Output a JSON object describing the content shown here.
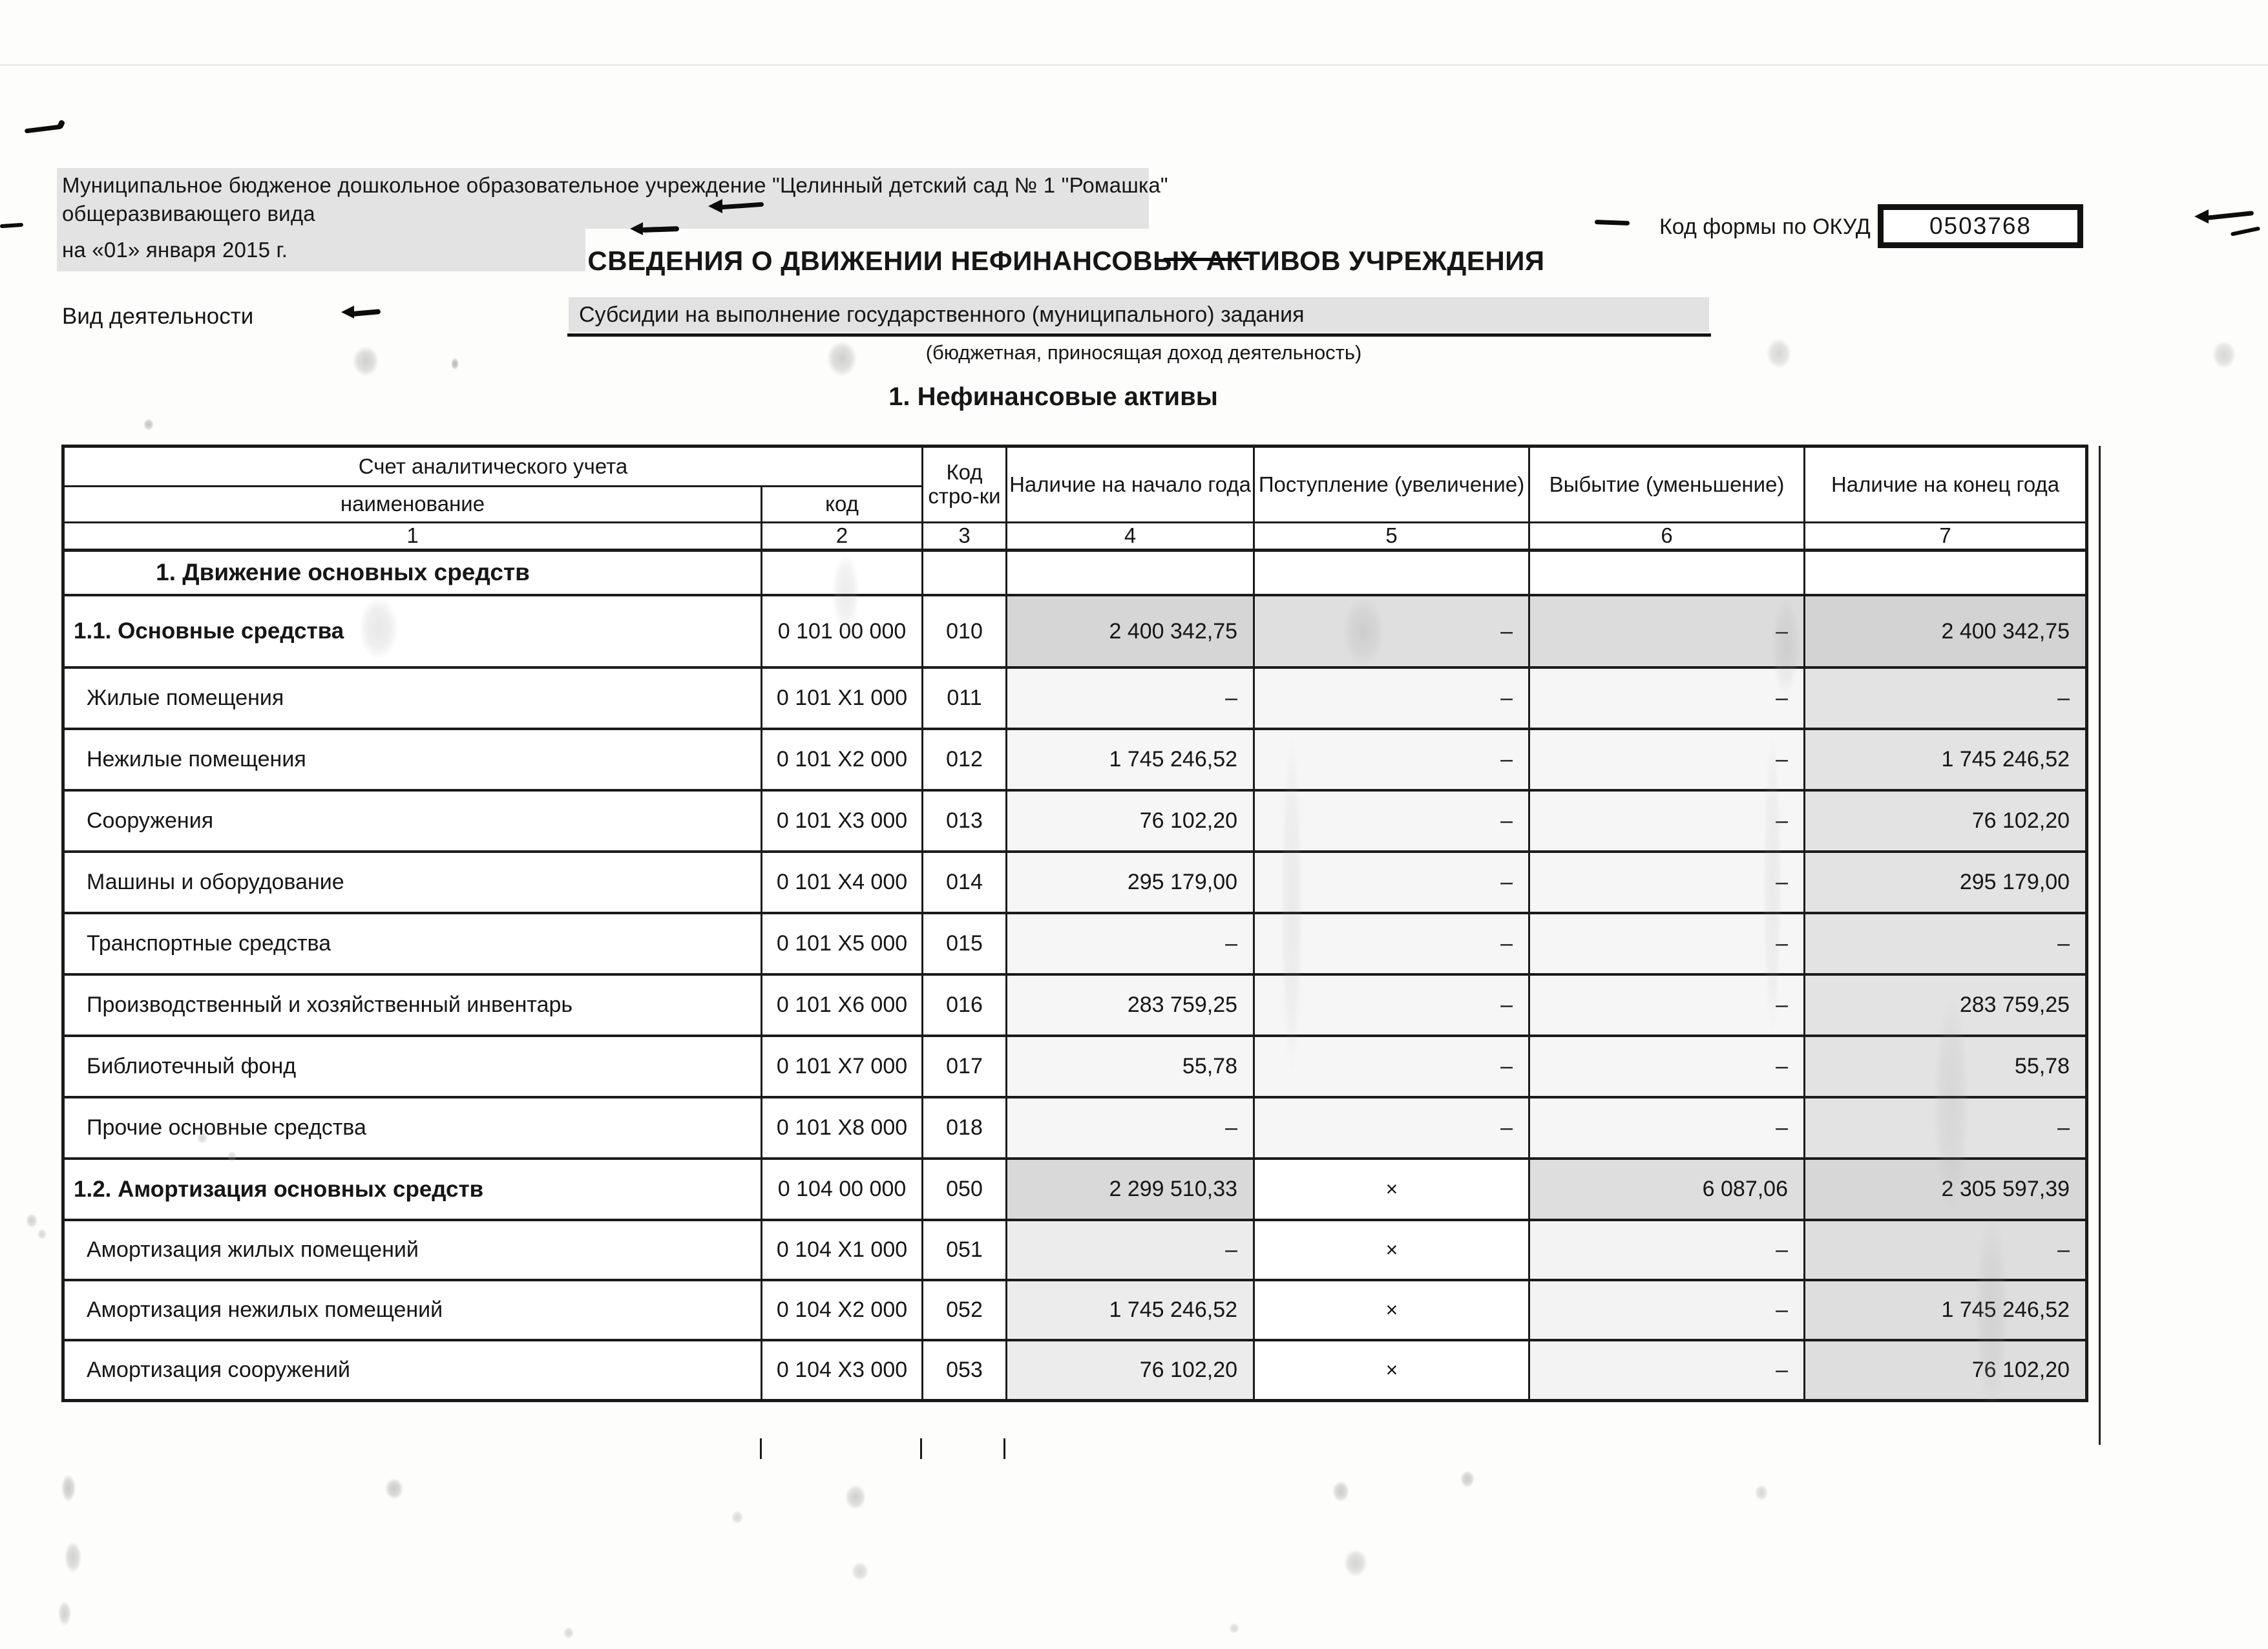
{
  "header": {
    "org_line1": "Муниципальное бюдженое дошкольное образовательное учреждение \"Целинный детский сад № 1 \"Ромашка\"",
    "org_line2": "общеразвивающего вида",
    "date_line": "на «01» января 2015 г.",
    "okud_label": "Код формы по ОКУД",
    "okud_value": "0503768",
    "title": "СВЕДЕНИЯ О ДВИЖЕНИИ НЕФИНАНСОВЫХ АКТИВОВ УЧРЕЖДЕНИЯ"
  },
  "activity": {
    "label": "Вид деятельности",
    "value": "Субсидии на выполнение государственного (муниципального) задания",
    "caption": "(бюджетная, приносящая доход деятельность)"
  },
  "section_title": "1. Нефинансовые активы",
  "table": {
    "headers": {
      "account": "Счет аналитического учета",
      "name": "наименование",
      "code": "код",
      "line_code": "Код стро-ки",
      "begin": "Наличие на начало года",
      "increase": "Поступление (увеличение)",
      "decrease": "Выбытие (уменьшение)",
      "end": "Наличие на конец года"
    },
    "column_numbers": [
      "1",
      "2",
      "3",
      "4",
      "5",
      "6",
      "7"
    ],
    "rows": [
      {
        "name": "1. Движение основных средств",
        "code": "",
        "line": "",
        "c4": "",
        "c5": "",
        "c6": "",
        "c7": "",
        "emphasis": "section"
      },
      {
        "name": "1.1. Основные средства",
        "code": "0 101 00 000",
        "line": "010",
        "c4": "2 400 342,75",
        "c5": "–",
        "c6": "–",
        "c7": "2 400 342,75",
        "emphasis": "bold"
      },
      {
        "name": "Жилые помещения",
        "code": "0 101 Х1 000",
        "line": "011",
        "c4": "–",
        "c5": "–",
        "c6": "–",
        "c7": "–",
        "emphasis": "normal"
      },
      {
        "name": "Нежилые помещения",
        "code": "0 101 Х2 000",
        "line": "012",
        "c4": "1 745 246,52",
        "c5": "–",
        "c6": "–",
        "c7": "1 745 246,52",
        "emphasis": "normal"
      },
      {
        "name": "Сооружения",
        "code": "0 101 Х3 000",
        "line": "013",
        "c4": "76 102,20",
        "c5": "–",
        "c6": "–",
        "c7": "76 102,20",
        "emphasis": "normal"
      },
      {
        "name": "Машины и оборудование",
        "code": "0 101 Х4 000",
        "line": "014",
        "c4": "295 179,00",
        "c5": "–",
        "c6": "–",
        "c7": "295 179,00",
        "emphasis": "normal"
      },
      {
        "name": "Транспортные средства",
        "code": "0 101 Х5 000",
        "line": "015",
        "c4": "–",
        "c5": "–",
        "c6": "–",
        "c7": "–",
        "emphasis": "normal"
      },
      {
        "name": "Производственный и хозяйственный инвентарь",
        "code": "0 101 Х6 000",
        "line": "016",
        "c4": "283 759,25",
        "c5": "–",
        "c6": "–",
        "c7": "283 759,25",
        "emphasis": "normal"
      },
      {
        "name": "Библиотечный фонд",
        "code": "0 101 Х7 000",
        "line": "017",
        "c4": "55,78",
        "c5": "–",
        "c6": "–",
        "c7": "55,78",
        "emphasis": "normal"
      },
      {
        "name": "Прочие основные средства",
        "code": "0 101 Х8 000",
        "line": "018",
        "c4": "–",
        "c5": "–",
        "c6": "–",
        "c7": "–",
        "emphasis": "normal"
      },
      {
        "name": "1.2. Амортизация основных средств",
        "code": "0 104 00 000",
        "line": "050",
        "c4": "2 299 510,33",
        "c5": "×",
        "c6": "6 087,06",
        "c7": "2 305 597,39",
        "emphasis": "bold"
      },
      {
        "name": "Амортизация жилых помещений",
        "code": "0 104 Х1 000",
        "line": "051",
        "c4": "–",
        "c5": "×",
        "c6": "–",
        "c7": "–",
        "emphasis": "normal"
      },
      {
        "name": "Амортизация нежилых помещений",
        "code": "0 104 Х2 000",
        "line": "052",
        "c4": "1 745 246,52",
        "c5": "×",
        "c6": "–",
        "c7": "1 745 246,52",
        "emphasis": "normal"
      },
      {
        "name": "Амортизация сооружений",
        "code": "0 104 Х3 000",
        "line": "053",
        "c4": "76 102,20",
        "c5": "×",
        "c6": "–",
        "c7": "76 102,20",
        "emphasis": "normal"
      }
    ]
  },
  "colors": {
    "shade_dark": "#d6d6d6",
    "shade_light": "#e3e3e3",
    "grid_line": "#1b1b1b",
    "highlight_band": "#e3e3e3"
  }
}
